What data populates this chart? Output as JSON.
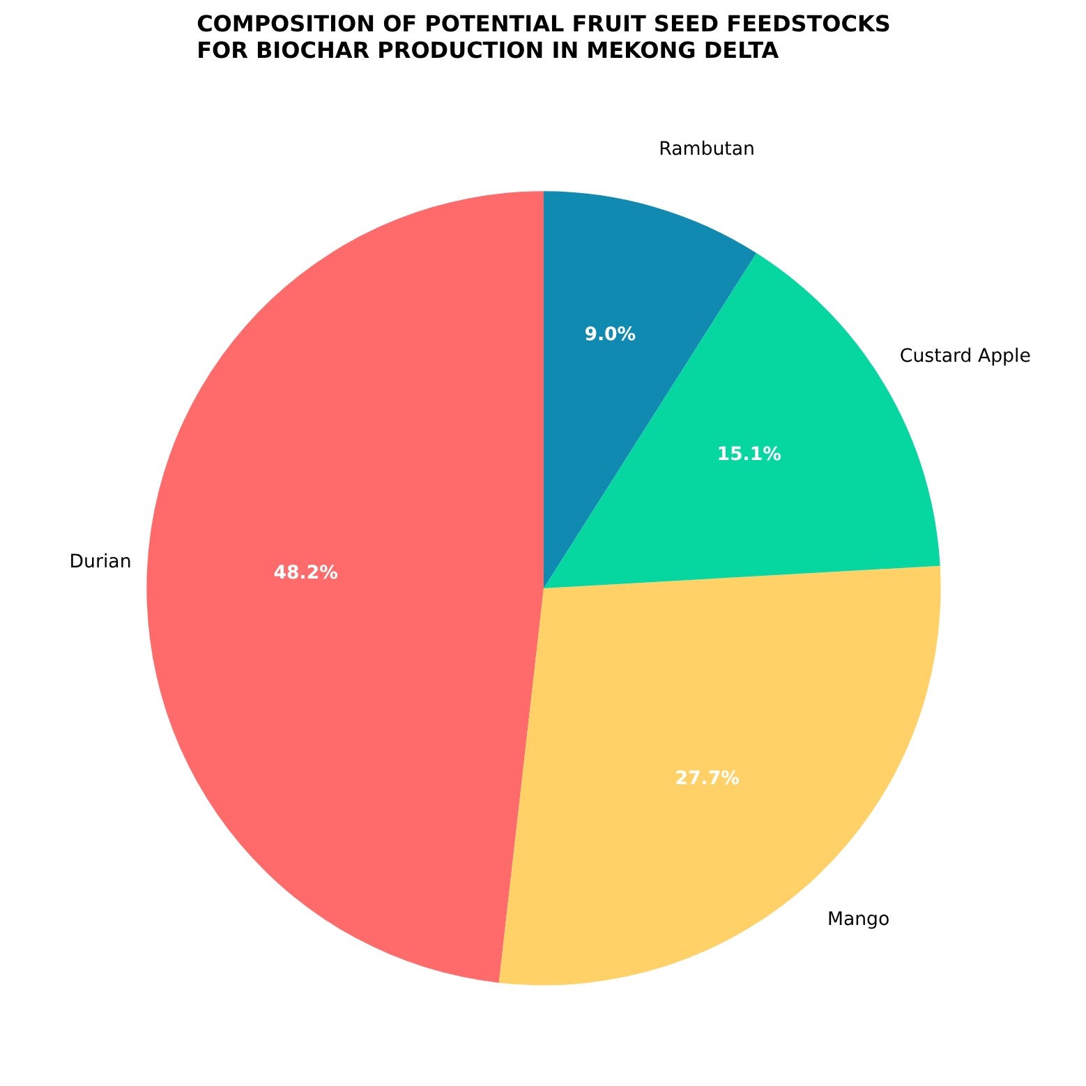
{
  "chart_data": {
    "type": "pie",
    "title": "COMPOSITION OF POTENTIAL FRUIT SEED FEEDSTOCKS\nFOR BIOCHAR PRODUCTION IN MEKONG DELTA",
    "categories": [
      "Durian",
      "Mango",
      "Custard Apple",
      "Rambutan"
    ],
    "values": [
      48.2,
      27.7,
      15.1,
      9.0
    ],
    "colors": [
      "#ff6b6b",
      "#ffd166",
      "#06d6a0",
      "#118ab2"
    ],
    "value_labels": [
      "48.2%",
      "27.7%",
      "15.1%",
      "9.0%"
    ]
  }
}
